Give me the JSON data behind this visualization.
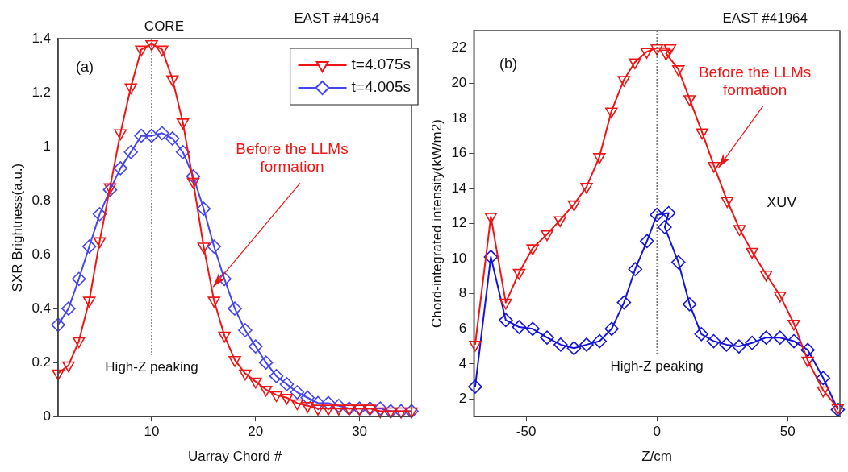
{
  "chart_data": [
    {
      "type": "line",
      "title": "EAST #41964",
      "subtitle": "CORE",
      "xlabel": "Uarray Chord #",
      "ylabel": "SXR Brightness(a.u.)",
      "x": [
        1,
        2,
        3,
        4,
        5,
        6,
        7,
        8,
        9,
        10,
        11,
        12,
        13,
        14,
        15,
        16,
        17,
        18,
        19,
        20,
        21,
        22,
        23,
        24,
        25,
        26,
        27,
        28,
        29,
        30,
        31,
        32,
        33,
        34,
        35
      ],
      "series": [
        {
          "name": "t=4.075s",
          "color": "#f01414",
          "marker": "triangle",
          "values": [
            0.16,
            0.19,
            0.28,
            0.43,
            0.65,
            0.85,
            1.05,
            1.22,
            1.36,
            1.38,
            1.36,
            1.25,
            1.09,
            0.87,
            0.63,
            0.43,
            0.3,
            0.21,
            0.16,
            0.13,
            0.1,
            0.08,
            0.07,
            0.05,
            0.04,
            0.03,
            0.03,
            0.03,
            0.03,
            0.03,
            0.03,
            0.02,
            0.02,
            0.02,
            0.02
          ]
        },
        {
          "name": "t=4.005s",
          "color": "#4646f0",
          "marker": "diamond",
          "values": [
            0.34,
            0.4,
            0.51,
            0.63,
            0.75,
            0.84,
            0.92,
            0.98,
            1.04,
            1.04,
            1.05,
            1.03,
            0.98,
            0.89,
            0.77,
            0.63,
            0.51,
            0.4,
            0.32,
            0.26,
            0.2,
            0.15,
            0.12,
            0.09,
            0.07,
            0.05,
            0.05,
            0.04,
            0.03,
            0.03,
            0.03,
            0.03,
            0.02,
            0.02,
            0.02
          ]
        }
      ],
      "xlim": [
        1,
        35
      ],
      "xticks": [
        10,
        20,
        30
      ],
      "ylim": [
        0,
        1.4
      ],
      "yticks": [
        0,
        0.2,
        0.4,
        0.6,
        0.8,
        1,
        1.2,
        1.4
      ],
      "grid": false,
      "legend": "top right",
      "line_style": "solid",
      "ref_lines": [
        {
          "axis": "x",
          "value": 10,
          "label": "High-Z peaking",
          "line_style": "dotted"
        }
      ],
      "annotations": [
        "(a)",
        {
          "text": "Before the LLMs formation",
          "x": 15.9,
          "y": 0.48
        }
      ]
    },
    {
      "type": "line",
      "title": "EAST #41964",
      "xlabel": "Z/cm",
      "ylabel": "Chord-integrated intensity(kW/m2)",
      "series": [
        {
          "color": "#f01414",
          "marker": "triangle",
          "x": [
            -69.5,
            -63.5,
            -57.8,
            -52.7,
            -47.5,
            -42,
            -37,
            -31.7,
            -26.9,
            -22,
            -17.4,
            -12.6,
            -8.4,
            -3.9,
            0,
            5,
            3.5,
            8.2,
            12.5,
            17.3,
            21.8,
            26.9,
            31.6,
            36.4,
            41.8,
            47.1,
            52.4,
            57.7,
            63.6,
            69.2
          ],
          "values": [
            5.1,
            12.4,
            7.5,
            9.2,
            10.6,
            11.4,
            12.2,
            13.1,
            14.1,
            15.8,
            18.4,
            20.2,
            21.2,
            21.8,
            22,
            22,
            21.7,
            20.8,
            19.1,
            17.2,
            15.3,
            13.3,
            11.7,
            10.4,
            9.1,
            7.9,
            6.3,
            4.2,
            2.5,
            1.5
          ]
        },
        {
          "color": "#1414dc",
          "marker": "diamond",
          "x": [
            -69.5,
            -63.5,
            -57.8,
            -52.7,
            -47.5,
            -42,
            -36.8,
            -31.7,
            -26.9,
            -21.9,
            -17.3,
            -12.6,
            -8.3,
            -3.8,
            0,
            4.5,
            3,
            8.2,
            12.5,
            17,
            21.7,
            26.6,
            31.4,
            36.4,
            41.8,
            47.1,
            52.4,
            57.7,
            63.6,
            69.2
          ],
          "values": [
            2.7,
            10.1,
            6.5,
            6.1,
            6,
            5.5,
            5.1,
            4.9,
            5.1,
            5.3,
            6,
            7.5,
            9.4,
            11,
            12.5,
            12.6,
            11.8,
            9.8,
            7.4,
            5.7,
            5.3,
            5.1,
            5,
            5.2,
            5.5,
            5.5,
            5.3,
            4.8,
            3.2,
            1.4
          ]
        }
      ],
      "xlim": [
        -70,
        70
      ],
      "xticks": [
        -50,
        0,
        50
      ],
      "ylim": [
        1,
        23
      ],
      "yticks": [
        2,
        4,
        6,
        8,
        10,
        12,
        14,
        16,
        18,
        20,
        22
      ],
      "grid": false,
      "legend": false,
      "line_style": "solid",
      "ref_lines": [
        {
          "axis": "x",
          "value": 0,
          "label": "High-Z peaking",
          "line_style": "dotted"
        }
      ],
      "annotations": [
        "(b)",
        {
          "text": "Before the LLMs formation",
          "x": 23.6,
          "y": 15.2
        },
        "XUV"
      ]
    }
  ]
}
